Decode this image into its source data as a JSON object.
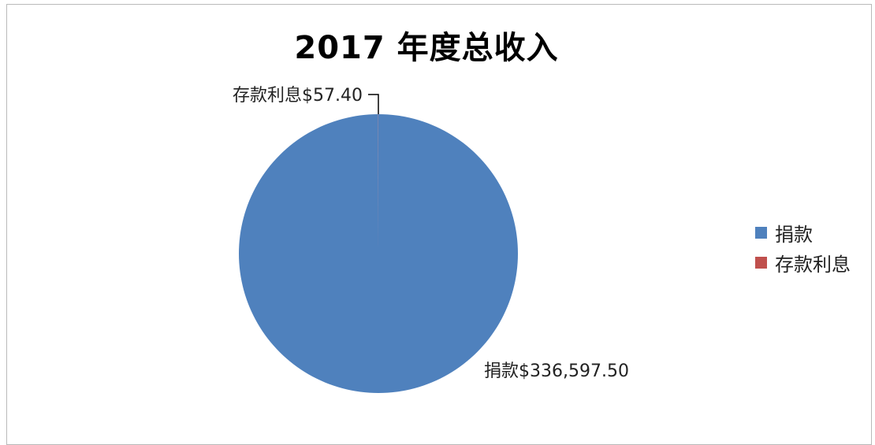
{
  "chart_data": {
    "type": "pie",
    "title": "2017 年度总收入",
    "categories": [
      "捐款",
      "存款利息"
    ],
    "values": [
      336597.5,
      57.4
    ],
    "colors": [
      "#4f81bd",
      "#c0504d"
    ],
    "data_labels": [
      "捐款$336,597.50",
      "存款利息$57.40"
    ],
    "legend": {
      "position": "right",
      "entries": [
        "捐款",
        "存款利息"
      ]
    }
  }
}
